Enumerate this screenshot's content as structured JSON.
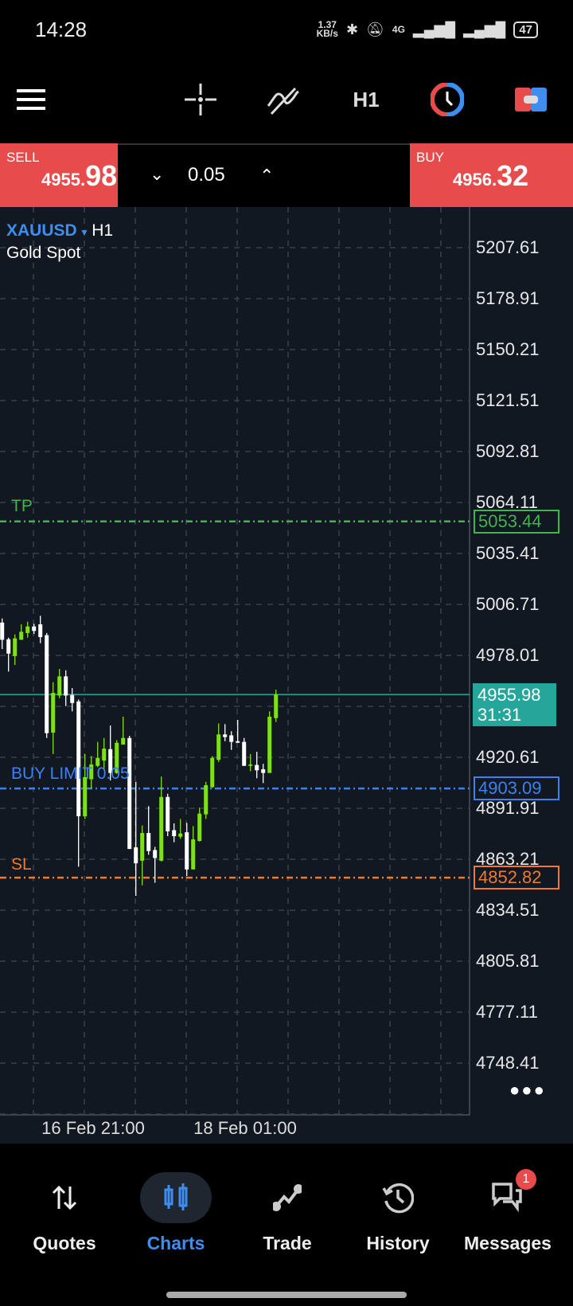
{
  "status": {
    "time": "14:28",
    "net_speed": "1.37",
    "net_unit": "KB/s",
    "network": "4G",
    "battery": "47"
  },
  "toolbar": {
    "timeframe": "H1",
    "icons": [
      "menu-icon",
      "crosshair-icon",
      "indicators-icon",
      "timeframe",
      "one-click-trading-icon",
      "trade-toggle-icon"
    ]
  },
  "trade": {
    "sell_label": "SELL",
    "sell_main": "4955.",
    "sell_big": "98",
    "buy_label": "BUY",
    "buy_main": "4956.",
    "buy_big": "32",
    "volume": "0.05"
  },
  "chart": {
    "symbol": "XAUUSD",
    "timeframe": "H1",
    "description": "Gold Spot",
    "current_price": "4955.98",
    "countdown": "31:31",
    "tp_label": "TP",
    "tp_price": "5053.44",
    "buy_limit_label": "BUY LIMIT 0.05",
    "buy_limit_price": "4903.09",
    "sl_label": "SL",
    "sl_price": "4852.82"
  },
  "colors": {
    "sell": "#e84b4b",
    "buy": "#e84b4b",
    "bull": "#7ee01a",
    "bear": "#ffffff",
    "current": "#26a69a",
    "tp": "#3fb54a",
    "buy_limit": "#3b82f0",
    "sl": "#ee7a2d",
    "accent": "#3d8ef0"
  },
  "chart_data": {
    "type": "candlestick",
    "ylim": [
      4720,
      5232
    ],
    "y_ticks": [
      "5207.61",
      "5178.91",
      "5150.21",
      "5121.51",
      "5092.81",
      "5064.11",
      "5035.41",
      "5006.71",
      "4978.01",
      "4920.61",
      "4891.91",
      "4863.21",
      "4834.51",
      "4805.81",
      "4777.11",
      "4748.41"
    ],
    "x_ticks": [
      "16 Feb 21:00",
      "18 Feb 01:00"
    ],
    "grid": true,
    "ohlc": [
      [
        4996.5,
        4998.8,
        4981.6,
        4986.8
      ],
      [
        4987.1,
        4988.0,
        4968.9,
        4979.0
      ],
      [
        4977.6,
        4989.8,
        4972.6,
        4987.6
      ],
      [
        4986.8,
        4995.5,
        4986.8,
        4991.3
      ],
      [
        4990.6,
        4997.0,
        4988.0,
        4994.3
      ],
      [
        4994.3,
        4995.8,
        4990.1,
        4991.8
      ],
      [
        4995.5,
        5000.3,
        4984.9,
        4988.3
      ],
      [
        4989.4,
        4990.6,
        4931.5,
        4934.2
      ],
      [
        4934.5,
        4962.9,
        4922.5,
        4956.9
      ],
      [
        4955.4,
        4970.4,
        4953.9,
        4966.2
      ],
      [
        4966.2,
        4969.6,
        4949.5,
        4955.4
      ],
      [
        4955.7,
        4959.6,
        4946.5,
        4951.2
      ],
      [
        4952.1,
        4953.2,
        4859.0,
        4887.4
      ],
      [
        4887.4,
        4922.5,
        4885.9,
        4909.4
      ],
      [
        4908.3,
        4921.3,
        4903.1,
        4916.6
      ],
      [
        4915.8,
        4929.3,
        4915.1,
        4920.3
      ],
      [
        4918.8,
        4931.5,
        4913.6,
        4925.5
      ],
      [
        4925.2,
        4938.5,
        4907.6,
        4911.8
      ],
      [
        4911.8,
        4930.3,
        4911.3,
        4928.8
      ],
      [
        4927.8,
        4943.5,
        4927.8,
        4931.5
      ],
      [
        4931.5,
        4932.7,
        4869.0,
        4869.0
      ],
      [
        4869.9,
        4906.8,
        4842.6,
        4860.9
      ],
      [
        4862.4,
        4882.2,
        4848.5,
        4878.0
      ],
      [
        4878.0,
        4893.1,
        4865.7,
        4867.8
      ],
      [
        4868.4,
        4870.2,
        4850.0,
        4863.9
      ],
      [
        4862.4,
        4909.8,
        4862.0,
        4898.3
      ],
      [
        4898.3,
        4900.1,
        4876.2,
        4878.9
      ],
      [
        4879.6,
        4883.4,
        4872.8,
        4876.2
      ],
      [
        4875.9,
        4885.9,
        4874.7,
        4877.7
      ],
      [
        4878.4,
        4883.7,
        4853.8,
        4857.5
      ],
      [
        4857.5,
        4881.9,
        4857.5,
        4874.4
      ],
      [
        4873.5,
        4892.3,
        4873.2,
        4888.9
      ],
      [
        4888.5,
        4906.8,
        4885.9,
        4904.9
      ],
      [
        4903.8,
        4921.3,
        4903.4,
        4920.3
      ],
      [
        4919.2,
        4939.7,
        4918.0,
        4933.5
      ],
      [
        4933.5,
        4939.3,
        4929.7,
        4932.0
      ],
      [
        4933.0,
        4935.3,
        4924.8,
        4929.3
      ],
      [
        4929.7,
        4941.7,
        4928.8,
        4928.8
      ],
      [
        4929.3,
        4931.5,
        4915.8,
        4915.8
      ],
      [
        4915.8,
        4922.5,
        4912.8,
        4916.6
      ],
      [
        4916.3,
        4923.7,
        4908.8,
        4913.3
      ],
      [
        4913.9,
        4916.9,
        4906.1,
        4911.8
      ],
      [
        4911.8,
        4946.5,
        4911.8,
        4943.5
      ],
      [
        4942.7,
        4958.7,
        4940.5,
        4955.98
      ]
    ]
  },
  "nav": {
    "items": [
      {
        "label": "Quotes"
      },
      {
        "label": "Charts"
      },
      {
        "label": "Trade"
      },
      {
        "label": "History"
      },
      {
        "label": "Messages",
        "badge": "1"
      }
    ]
  }
}
